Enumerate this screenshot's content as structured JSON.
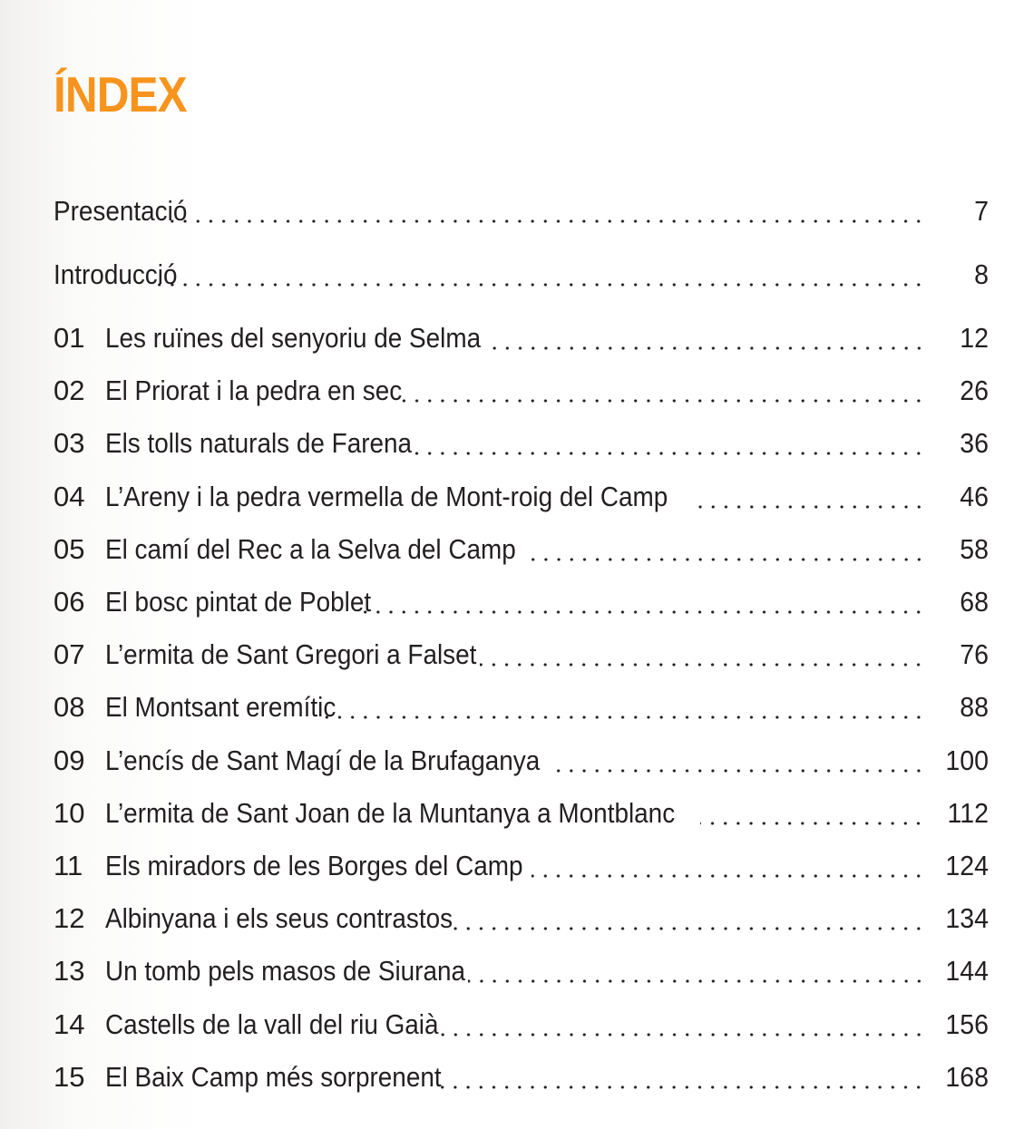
{
  "title": "ÍNDEX",
  "colors": {
    "title": "#f7941d",
    "text": "#231f20"
  },
  "front": [
    {
      "label": "Presentació",
      "page": "7"
    },
    {
      "label": "Introducció",
      "page": "8"
    }
  ],
  "chapters": [
    {
      "num": "01",
      "label": "Les ruïnes del senyoriu de Selma",
      "page": "12"
    },
    {
      "num": "02",
      "label": "El Priorat i la pedra en sec",
      "page": "26"
    },
    {
      "num": "03",
      "label": "Els tolls naturals de Farena",
      "page": "36"
    },
    {
      "num": "04",
      "label": "L’Areny i la pedra vermella de Mont-roig del Camp",
      "page": "46"
    },
    {
      "num": "05",
      "label": "El camí del Rec a la Selva del Camp",
      "page": "58"
    },
    {
      "num": "06",
      "label": "El bosc pintat de Poblet",
      "page": "68"
    },
    {
      "num": "07",
      "label": "L’ermita de Sant Gregori a Falset",
      "page": "76"
    },
    {
      "num": "08",
      "label": "El Montsant eremític",
      "page": "88"
    },
    {
      "num": "09",
      "label": "L’encís de Sant Magí de la Brufaganya",
      "page": "100"
    },
    {
      "num": "10",
      "label": "L’ermita de Sant Joan de la Muntanya a Montblanc",
      "page": "112"
    },
    {
      "num": "11",
      "label": "Els miradors de les Borges del Camp",
      "page": "124"
    },
    {
      "num": "12",
      "label": "Albinyana i els seus contrastos",
      "page": "134"
    },
    {
      "num": "13",
      "label": "Un tomb pels masos de Siurana",
      "page": "144"
    },
    {
      "num": "14",
      "label": "Castells de la vall del riu Gaià",
      "page": "156"
    },
    {
      "num": "15",
      "label": "El Baix Camp més sorprenent",
      "page": "168"
    }
  ]
}
